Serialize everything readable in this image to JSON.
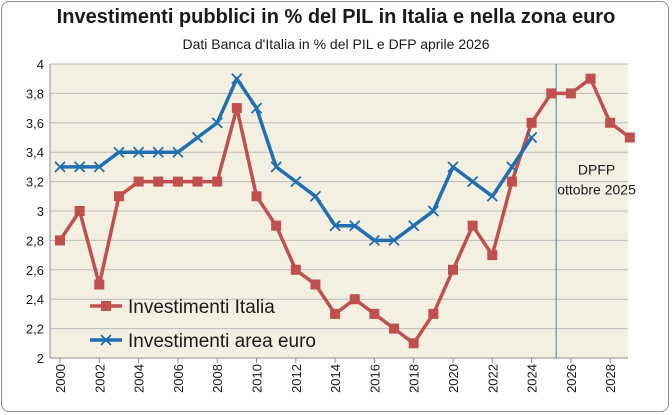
{
  "chart_data": {
    "type": "line",
    "title": "Investimenti pubblici in % del PIL in Italia e nella zona euro",
    "subtitle": "Dati Banca d'Italia in % del PIL e DFP aprile 2026",
    "xlabel": "",
    "ylabel": "",
    "x": [
      2000,
      2001,
      2002,
      2003,
      2004,
      2005,
      2006,
      2007,
      2008,
      2009,
      2010,
      2011,
      2012,
      2013,
      2014,
      2015,
      2016,
      2017,
      2018,
      2019,
      2020,
      2021,
      2022,
      2023,
      2024,
      2025,
      2026,
      2027,
      2028,
      2029
    ],
    "x_tick_labels": [
      "2000",
      "2002",
      "2004",
      "2006",
      "2008",
      "2010",
      "2012",
      "2014",
      "2016",
      "2018",
      "2020",
      "2022",
      "2024",
      "2026",
      "2028"
    ],
    "y_tick_labels": [
      "2",
      "2,2",
      "2,4",
      "2,6",
      "2,8",
      "3",
      "3,2",
      "3,4",
      "3,6",
      "3,8",
      "4"
    ],
    "xlim": [
      2000,
      2029
    ],
    "ylim": [
      2,
      4
    ],
    "grid": true,
    "legend_position": "lower-left",
    "series": [
      {
        "name": "Investimenti Italia",
        "color": "#c0504d",
        "marker": "square",
        "values": [
          2.8,
          3.0,
          2.5,
          3.1,
          3.2,
          3.2,
          3.2,
          3.2,
          3.2,
          3.7,
          3.1,
          2.9,
          2.6,
          2.5,
          2.3,
          2.4,
          2.3,
          2.2,
          2.1,
          2.3,
          2.6,
          2.9,
          2.7,
          3.2,
          3.6,
          3.8,
          3.8,
          3.9,
          3.6,
          3.5
        ]
      },
      {
        "name": "Investimenti area euro",
        "color": "#1f6fb2",
        "marker": "x",
        "values": [
          3.3,
          3.3,
          3.3,
          3.4,
          3.4,
          3.4,
          3.4,
          3.5,
          3.6,
          3.9,
          3.7,
          3.3,
          3.2,
          3.1,
          2.9,
          2.9,
          2.8,
          2.8,
          2.9,
          3.0,
          3.3,
          3.2,
          3.1,
          3.3,
          3.5,
          null,
          null,
          null,
          null,
          null
        ]
      }
    ],
    "annotations": [
      {
        "text_lines": [
          "DPFP",
          "ottobre 2025"
        ],
        "x": 2027,
        "y": 3.25
      }
    ],
    "vertical_line_x": 2025.25,
    "plot_background": "#f3efe1",
    "grid_color": "#bcbcbc"
  }
}
